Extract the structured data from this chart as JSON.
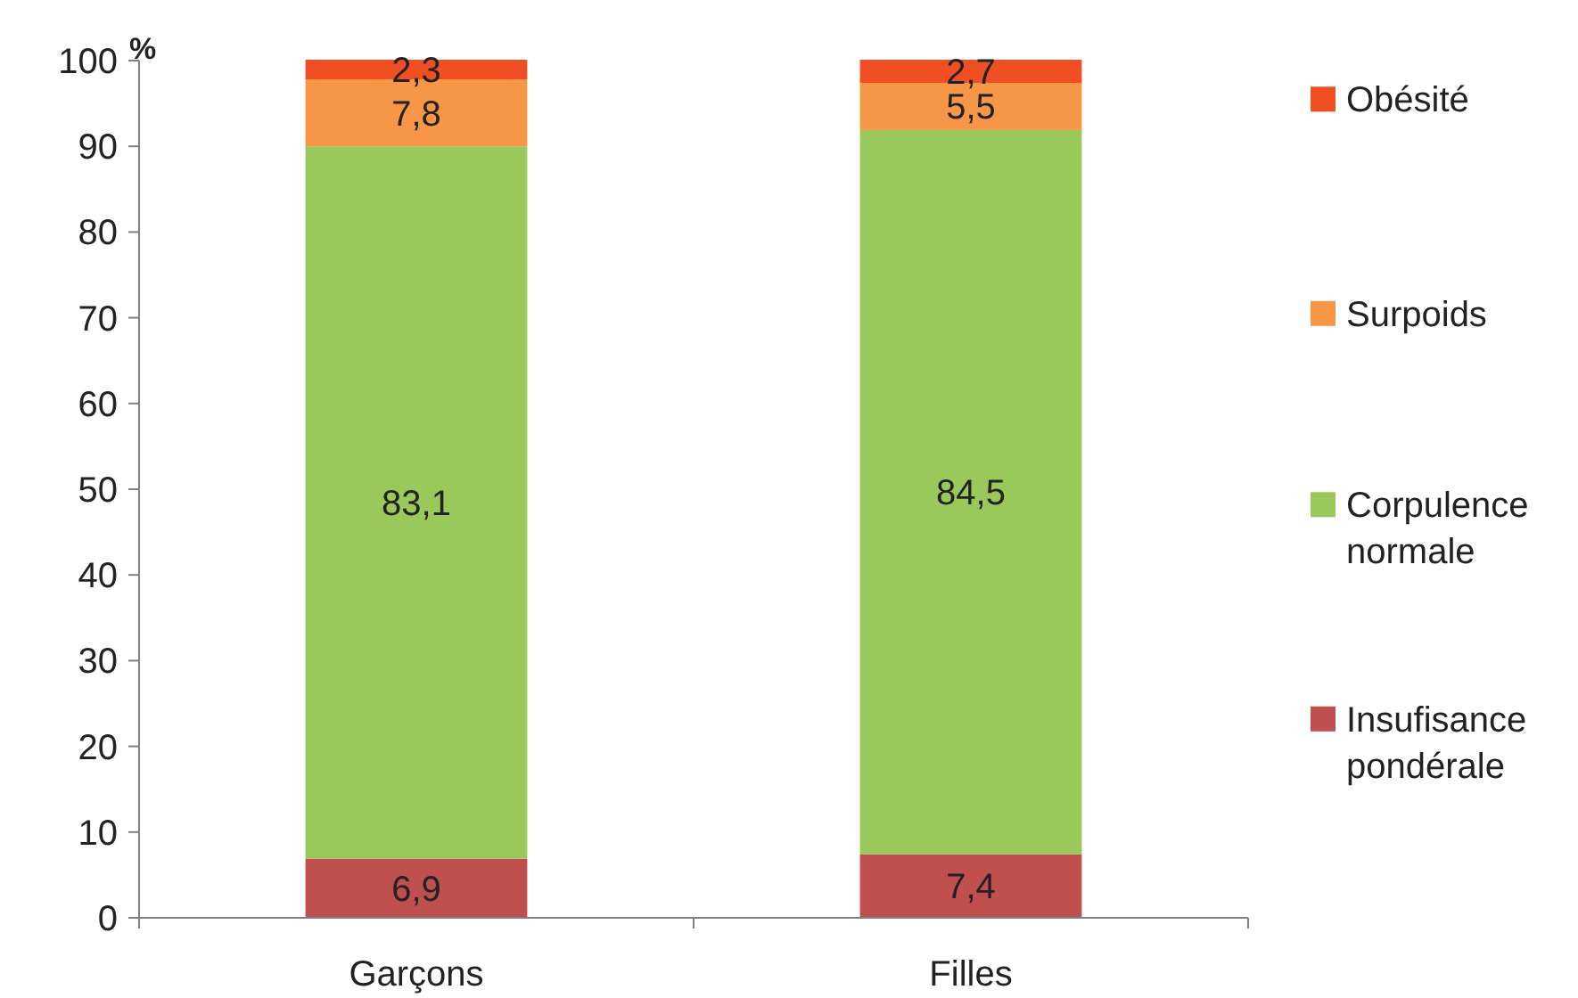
{
  "chart_data": {
    "type": "bar",
    "stacked": true,
    "ylabel": "%",
    "categories": [
      "Garçons",
      "Filles"
    ],
    "series": [
      {
        "name": "Insufisance pondérale",
        "color": "#c0504d",
        "values": [
          6.9,
          7.4
        ],
        "value_labels": [
          "6,9",
          "7,4"
        ]
      },
      {
        "name": "Corpulence normale",
        "color": "#9bc85a",
        "values": [
          83.1,
          84.5
        ],
        "value_labels": [
          "83,1",
          "84,5"
        ]
      },
      {
        "name": "Surpoids",
        "color": "#f79646",
        "values": [
          7.8,
          5.5
        ],
        "value_labels": [
          "7,8",
          "5,5"
        ]
      },
      {
        "name": "Obésité",
        "color": "#f04e23",
        "values": [
          2.3,
          2.7
        ],
        "value_labels": [
          "2,3",
          "2,7"
        ]
      }
    ],
    "ylim": [
      0,
      100
    ],
    "yticks": [
      0,
      10,
      20,
      30,
      40,
      50,
      60,
      70,
      80,
      90,
      100
    ],
    "grid": false,
    "legend": "right"
  }
}
